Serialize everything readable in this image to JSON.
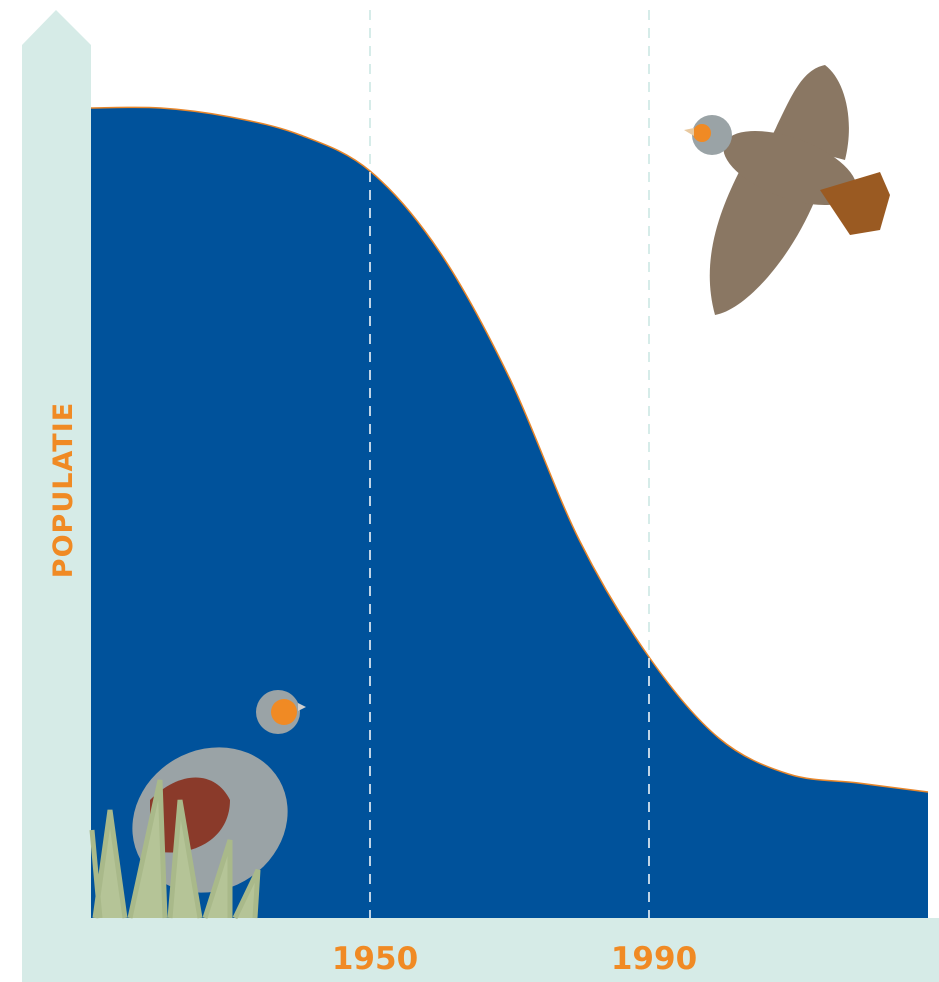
{
  "chart_data": {
    "type": "area",
    "y_label": "POPULATIE",
    "x": [
      1910,
      1920,
      1930,
      1940,
      1950,
      1960,
      1970,
      1980,
      1990,
      2000,
      2010,
      2020,
      2030
    ],
    "values": [
      90,
      90,
      89,
      87,
      83,
      74,
      60,
      42,
      29,
      20,
      16,
      15,
      14
    ],
    "color": "#00529b",
    "line_color": "#e8862a",
    "xlim": [
      1910,
      2030
    ],
    "xticks": [
      1950,
      1990
    ],
    "ylim": [
      0,
      100
    ]
  }
}
